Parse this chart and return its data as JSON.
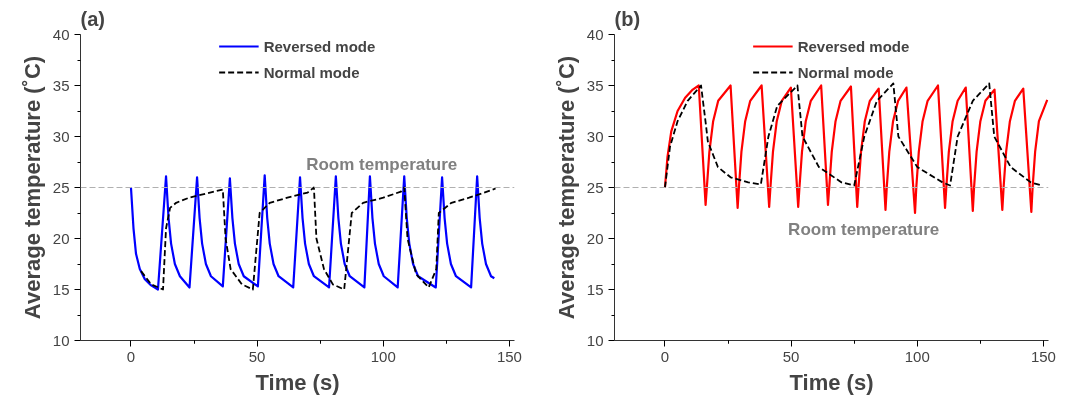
{
  "chart_data": [
    {
      "type": "line",
      "title": "(a)",
      "xlabel": "Time (s)",
      "ylabel": "Average temperature (˚C)",
      "xlim": [
        -20,
        152
      ],
      "ylim": [
        10,
        40
      ],
      "xticks": [
        0,
        50,
        100,
        150
      ],
      "yticks": [
        10,
        15,
        20,
        25,
        30,
        35,
        40
      ],
      "legend": "top",
      "grid": false,
      "series": [
        {
          "name": "Reversed mode",
          "color": "#0000ff",
          "line_style": "solid",
          "x": [
            0,
            1,
            2,
            3.5,
            5.5,
            8,
            10.7,
            13.9,
            14.9,
            15.9,
            17.4,
            19.4,
            23.2,
            26.2,
            27.2,
            28.2,
            29.7,
            31.7,
            36.4,
            39.2,
            40.2,
            41.2,
            42.7,
            44.7,
            50.3,
            53.0,
            54.0,
            55.0,
            56.5,
            58.5,
            64.3,
            67.0,
            68.0,
            69.0,
            70.5,
            72.5,
            78.5,
            81.2,
            82.2,
            83.2,
            84.7,
            86.7,
            92.5,
            94.7,
            95.7,
            96.7,
            98.2,
            100.2,
            105.7,
            108.3,
            109.3,
            110.3,
            111.8,
            113.8,
            120.8,
            123.3,
            124.3,
            125.3,
            126.8,
            128.8,
            134.8,
            137.2,
            138.2,
            139.2,
            140.7,
            142.7,
            144
          ],
          "values": [
            25,
            21,
            18.5,
            17,
            16,
            15.4,
            15.0,
            26.1,
            22,
            19.5,
            17.5,
            16.3,
            15.2,
            26.0,
            22,
            19.5,
            17.5,
            16.3,
            15.3,
            25.9,
            22,
            19.5,
            17.5,
            16.3,
            15.3,
            26.2,
            22,
            19.5,
            17.5,
            16.3,
            15.2,
            26.0,
            22,
            19.5,
            17.5,
            16.3,
            15.2,
            26.1,
            22,
            19.5,
            17.5,
            16.3,
            15.2,
            26.1,
            22,
            19.5,
            17.5,
            16.3,
            15.2,
            26.1,
            22,
            19.5,
            17.5,
            16.3,
            15.2,
            26.0,
            22,
            19.5,
            17.5,
            16.3,
            15.2,
            26.1,
            22,
            19.5,
            17.5,
            16.3,
            16.1
          ]
        },
        {
          "name": "Normal mode",
          "color": "#000000",
          "line_style": "dashed",
          "x": [
            4,
            8,
            12.7,
            13.9,
            15.5,
            17.9,
            23,
            33,
            36.4,
            37.5,
            39.5,
            44,
            48.3,
            51,
            55,
            62,
            70,
            72.5,
            73.5,
            76.5,
            80,
            84.5,
            87.5,
            92,
            100,
            107,
            108.3,
            109.6,
            113,
            118,
            121,
            122,
            127,
            134,
            140,
            144.5
          ],
          "values": [
            16.8,
            15.5,
            15.0,
            21,
            23,
            23.5,
            24,
            24.6,
            24.8,
            20,
            17,
            15.5,
            15.0,
            22.5,
            23.5,
            24,
            24.5,
            25.0,
            20,
            17,
            15.5,
            15.0,
            22.5,
            23.5,
            24,
            24.6,
            25,
            20,
            16.5,
            15.2,
            17,
            22.5,
            23.5,
            24,
            24.5,
            24.9
          ]
        }
      ],
      "ref_lines": [
        {
          "axis": "y",
          "value": 25,
          "color": "#b0b0b0",
          "line_style": "dashed",
          "label": "Room temperature"
        }
      ]
    },
    {
      "type": "line",
      "title": "(b)",
      "xlabel": "Time (s)",
      "ylabel": "Average temperature (˚C)",
      "xlim": [
        -20,
        152
      ],
      "ylim": [
        10,
        40
      ],
      "xticks": [
        0,
        50,
        100,
        150
      ],
      "yticks": [
        10,
        15,
        20,
        25,
        30,
        35,
        40
      ],
      "legend": "top",
      "grid": false,
      "series": [
        {
          "name": "Reversed mode",
          "color": "#ff0000",
          "line_style": "solid",
          "x": [
            0,
            1,
            2.5,
            5,
            8,
            11,
            13.4,
            16.1,
            16.6,
            17.6,
            19.1,
            21.1,
            26,
            28.8,
            29.3,
            30.3,
            31.8,
            33.8,
            38.3,
            41.3,
            41.8,
            42.8,
            44.3,
            46.3,
            49.9,
            52.8,
            53.3,
            54.3,
            55.8,
            57.8,
            61.9,
            64.6,
            65.1,
            66.1,
            67.6,
            69.6,
            73.7,
            76.2,
            76.7,
            77.7,
            79.2,
            81.2,
            84.7,
            87.4,
            87.9,
            88.9,
            90.4,
            92.4,
            95.7,
            99.1,
            99.6,
            100.6,
            102.1,
            104.1,
            108.2,
            111,
            111.5,
            112.5,
            114,
            116,
            119.2,
            122,
            122.5,
            123.5,
            125,
            127,
            130.6,
            133.7,
            134.2,
            135.2,
            136.7,
            138.7,
            142,
            145.2,
            145.7,
            146.7,
            148.2,
            151.5
          ],
          "values": [
            25,
            28,
            30.5,
            32.5,
            33.8,
            34.6,
            35,
            23.3,
            25,
            28.5,
            31.5,
            33.5,
            35,
            23.0,
            25,
            28.5,
            31.5,
            33.5,
            35,
            23.1,
            25,
            28.5,
            31.5,
            33.5,
            34.8,
            23.1,
            25,
            28.5,
            31.5,
            33.5,
            35,
            23.3,
            25,
            28.5,
            31.5,
            33.5,
            34.9,
            23.1,
            25,
            28.5,
            31.5,
            33.5,
            34.7,
            22.8,
            25,
            28.5,
            31.5,
            33.5,
            34.8,
            22.5,
            25,
            28.5,
            31.5,
            33.5,
            35,
            23,
            25,
            28.5,
            31.5,
            33.5,
            34.8,
            22.7,
            25,
            28.5,
            31.5,
            33.5,
            34.6,
            22.8,
            25,
            28.5,
            31.5,
            33.5,
            34.7,
            22.6,
            25,
            28.5,
            31.5,
            33.6
          ]
        },
        {
          "name": "Normal mode",
          "color": "#000000",
          "line_style": "dashed",
          "x": [
            0,
            2,
            5,
            9,
            14.3,
            16.3,
            17,
            21,
            26,
            33,
            38,
            41,
            44.5,
            52.5,
            54.5,
            61,
            70,
            75,
            79,
            84,
            90.5,
            92.5,
            100,
            110,
            113,
            116,
            122,
            128.5,
            130.5,
            137,
            145,
            149.5
          ],
          "values": [
            25,
            29,
            31.5,
            33.5,
            35,
            31,
            29.5,
            27,
            26,
            25.5,
            25.3,
            30,
            33,
            35,
            30,
            27,
            25.5,
            25.2,
            30,
            33.5,
            35.2,
            30,
            27,
            25.5,
            25.2,
            30,
            33.5,
            35.2,
            30,
            27,
            25.5,
            25.2
          ]
        }
      ],
      "ref_lines": [
        {
          "axis": "y",
          "value": 25,
          "color": "#b0b0b0",
          "line_style": "dashed",
          "label": "Room temperature"
        }
      ]
    }
  ]
}
